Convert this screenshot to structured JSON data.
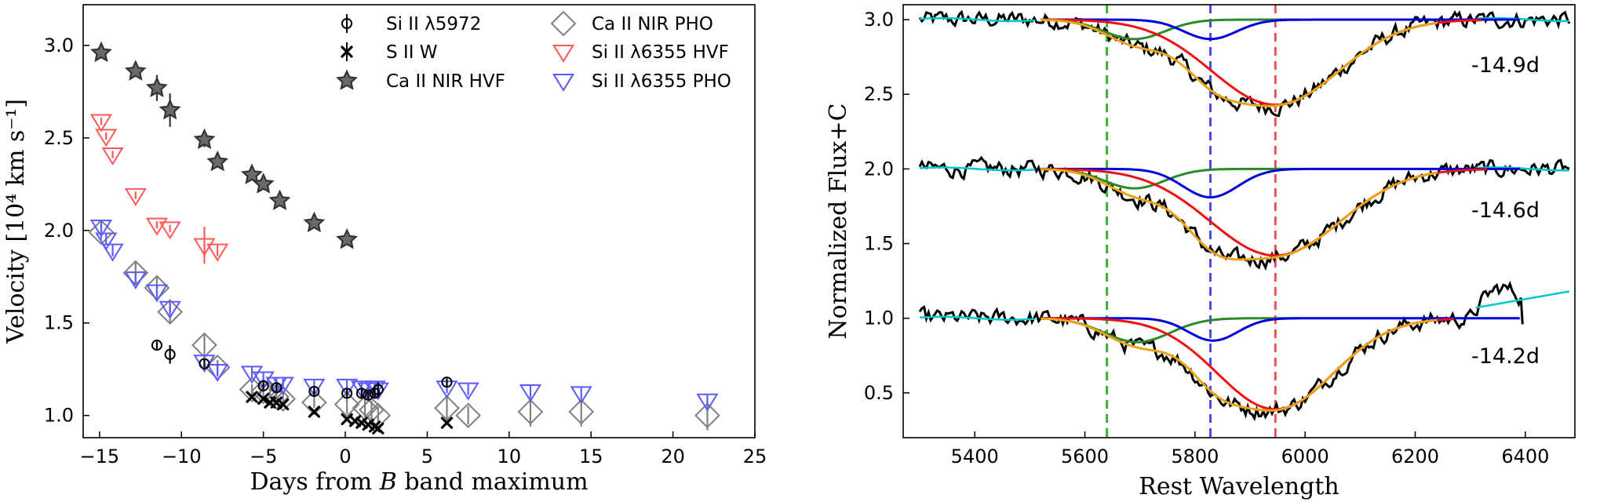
{
  "chart_data": [
    {
      "type": "scatter",
      "xlabel_pre": "Days from ",
      "xlabel_em": "B",
      "xlabel_post": " band maximum",
      "ylabel": "Velocity [10⁴ km s⁻¹]",
      "xlim": [
        -16,
        25
      ],
      "ylim": [
        0.88,
        3.22
      ],
      "xticks": [
        -15,
        -10,
        -5,
        0,
        5,
        10,
        15,
        20,
        25
      ],
      "yticks": [
        1.0,
        1.5,
        2.0,
        2.5,
        3.0
      ],
      "xtick_labels": [
        "−15",
        "−10",
        "−5",
        "0",
        "5",
        "10",
        "15",
        "20",
        "25"
      ],
      "ytick_labels": [
        "1.0",
        "1.5",
        "2.0",
        "2.5",
        "3.0"
      ],
      "legend": [
        {
          "label": "Si II λ5972",
          "marker": "circle",
          "color": "#000000"
        },
        {
          "label": "S II W",
          "marker": "x",
          "color": "#000000"
        },
        {
          "label": "Ca II NIR HVF",
          "marker": "star",
          "color": "#333333"
        },
        {
          "label": "Ca II NIR PHO",
          "marker": "diamond",
          "color": "#808080"
        },
        {
          "label": "Si II λ6355 HVF",
          "marker": "tri",
          "color": "#ff5a5a"
        },
        {
          "label": "Si II λ6355 PHO",
          "marker": "tri",
          "color": "#5a5aff"
        }
      ],
      "series": [
        {
          "name": "Ca II NIR HVF",
          "marker": "star",
          "color": "#333333",
          "x": [
            -14.9,
            -12.8,
            -11.5,
            -10.7,
            -8.6,
            -7.8,
            -5.7,
            -5.0,
            -4.0,
            -1.9,
            0.1
          ],
          "y": [
            2.96,
            2.86,
            2.77,
            2.65,
            2.49,
            2.37,
            2.3,
            2.25,
            2.16,
            2.04,
            1.95
          ],
          "err": [
            0.03,
            0.03,
            0.07,
            0.09,
            0.04,
            0.03,
            0.02,
            0.02,
            0.02,
            0.02,
            0.02
          ]
        },
        {
          "name": "Si II λ6355 HVF",
          "marker": "tri",
          "color": "#ff5a5a",
          "x": [
            -14.9,
            -14.6,
            -14.2,
            -12.8,
            -11.5,
            -10.7,
            -8.6,
            -7.8
          ],
          "y": [
            2.59,
            2.51,
            2.41,
            2.19,
            2.03,
            2.01,
            1.92,
            1.89
          ],
          "err": [
            0.02,
            0.02,
            0.02,
            0.02,
            0.02,
            0.02,
            0.1,
            0.03
          ]
        },
        {
          "name": "Ca II NIR PHO",
          "marker": "diamond",
          "color": "#808080",
          "x": [
            -14.9,
            -12.8,
            -11.5,
            -10.7,
            -8.6,
            -7.8,
            -5.7,
            -5.0,
            -4.6,
            -4.2,
            -3.8,
            -1.9,
            0.1,
            1.2,
            1.6,
            2.0,
            6.2,
            7.5,
            11.3,
            14.4,
            22.1
          ],
          "y": [
            1.99,
            1.77,
            1.69,
            1.56,
            1.38,
            1.26,
            1.14,
            1.13,
            1.12,
            1.1,
            1.09,
            1.07,
            1.06,
            1.04,
            1.03,
            1.0,
            1.04,
            1.0,
            1.02,
            1.02,
            1.0
          ],
          "err": [
            0.04,
            0.06,
            0.06,
            0.06,
            0.06,
            0.04,
            0.03,
            0.03,
            0.03,
            0.03,
            0.03,
            0.03,
            0.05,
            0.05,
            0.05,
            0.05,
            0.07,
            0.05,
            0.08,
            0.08,
            0.08
          ]
        },
        {
          "name": "Si II λ6355 PHO",
          "marker": "tri",
          "color": "#5a5aff",
          "x": [
            -14.9,
            -14.6,
            -14.2,
            -12.8,
            -11.5,
            -10.7,
            -8.6,
            -7.8,
            -5.7,
            -5.0,
            -4.2,
            -3.8,
            -1.9,
            0.1,
            1.0,
            1.4,
            1.8,
            2.0,
            6.2,
            7.5,
            11.3,
            14.4,
            22.1
          ],
          "y": [
            2.02,
            1.95,
            1.89,
            1.74,
            1.67,
            1.58,
            1.29,
            1.24,
            1.23,
            1.2,
            1.17,
            1.17,
            1.16,
            1.16,
            1.15,
            1.14,
            1.15,
            1.14,
            1.15,
            1.14,
            1.13,
            1.12,
            1.08
          ],
          "err": [
            0.03,
            0.03,
            0.03,
            0.03,
            0.03,
            0.03,
            0.03,
            0.03,
            0.03,
            0.03,
            0.03,
            0.03,
            0.03,
            0.03,
            0.03,
            0.03,
            0.03,
            0.03,
            0.03,
            0.03,
            0.03,
            0.03,
            0.03
          ]
        },
        {
          "name": "Si II λ5972",
          "marker": "circle",
          "color": "#000000",
          "x": [
            -11.5,
            -10.7,
            -8.6,
            -5.0,
            -4.2,
            -1.9,
            0.1,
            1.0,
            1.4,
            1.8,
            2.0,
            6.2
          ],
          "y": [
            1.38,
            1.33,
            1.28,
            1.16,
            1.15,
            1.13,
            1.12,
            1.12,
            1.11,
            1.12,
            1.14,
            1.18
          ],
          "err": [
            0.02,
            0.05,
            0.02,
            0.02,
            0.02,
            0.02,
            0.02,
            0.02,
            0.02,
            0.02,
            0.04,
            0.02
          ]
        },
        {
          "name": "S II W",
          "marker": "x",
          "color": "#000000",
          "x": [
            -5.7,
            -5.0,
            -4.6,
            -4.2,
            -3.8,
            -1.9,
            0.1,
            0.6,
            1.0,
            1.4,
            1.8,
            2.0,
            6.2
          ],
          "y": [
            1.1,
            1.09,
            1.07,
            1.07,
            1.06,
            1.02,
            0.98,
            0.97,
            0.96,
            0.95,
            0.94,
            0.93,
            0.96
          ],
          "err": [
            0.01,
            0.01,
            0.01,
            0.01,
            0.01,
            0.01,
            0.01,
            0.01,
            0.01,
            0.01,
            0.01,
            0.01,
            0.01
          ]
        }
      ]
    },
    {
      "type": "line",
      "xlabel": "Rest Wavelength",
      "ylabel": "Normalized Flux+C",
      "xlim": [
        5270,
        6490
      ],
      "ylim": [
        0.2,
        3.1
      ],
      "xticks": [
        5400,
        5600,
        5800,
        6000,
        6200,
        6400
      ],
      "yticks": [
        0.5,
        1.0,
        1.5,
        2.0,
        2.5,
        3.0
      ],
      "xtick_labels": [
        "5400",
        "5600",
        "5800",
        "6000",
        "6200",
        "6400"
      ],
      "ytick_labels": [
        "0.5",
        "1.0",
        "1.5",
        "2.0",
        "2.5",
        "3.0"
      ],
      "vlines": [
        {
          "x": 5640,
          "color": "#3ab03a"
        },
        {
          "x": 5828,
          "color": "#4b4bea"
        },
        {
          "x": 5946,
          "color": "#ef5050"
        }
      ],
      "annotations": [
        "-14.9d",
        "-14.6d",
        "-14.2d"
      ],
      "colors": {
        "data": "#000000",
        "continuum": "#00c8c8",
        "total": "#e8a317",
        "hvf": "#2a8a2a",
        "pho_hvf": "#0000dd",
        "pho": "#ee1111"
      },
      "spectra": [
        {
          "label": "-14.9d",
          "offset": 2.0,
          "x_start": 5300,
          "x_end": 6480,
          "cont_end": 6480,
          "components": [
            {
              "role": "hvf",
              "center": 5690,
              "depth": 0.13,
              "sigma": 55,
              "x_start": 5520,
              "x_end": 5990
            },
            {
              "role": "pho_hvf",
              "center": 5828,
              "depth": 0.13,
              "sigma": 48,
              "x_start": 5520,
              "x_end": 6390
            },
            {
              "role": "pho",
              "center": 5946,
              "depth": 0.57,
              "sigma": 115,
              "x_start": 5520,
              "x_end": 6320
            }
          ]
        },
        {
          "label": "-14.6d",
          "offset": 1.0,
          "x_start": 5300,
          "x_end": 6480,
          "cont_end": 6480,
          "components": [
            {
              "role": "hvf",
              "center": 5690,
              "depth": 0.13,
              "sigma": 55,
              "x_start": 5520,
              "x_end": 5990
            },
            {
              "role": "pho_hvf",
              "center": 5828,
              "depth": 0.19,
              "sigma": 50,
              "x_start": 5520,
              "x_end": 6390
            },
            {
              "role": "pho",
              "center": 5946,
              "depth": 0.58,
              "sigma": 118,
              "x_start": 5520,
              "x_end": 6330
            }
          ]
        },
        {
          "label": "-14.2d",
          "offset": 0.0,
          "x_start": 5300,
          "x_end": 6395,
          "cont_end": 6480,
          "components": [
            {
              "role": "hvf",
              "center": 5695,
              "depth": 0.16,
              "sigma": 60,
              "x_start": 5520,
              "x_end": 5990
            },
            {
              "role": "pho_hvf",
              "center": 5833,
              "depth": 0.15,
              "sigma": 45,
              "x_start": 5520,
              "x_end": 6390
            },
            {
              "role": "pho",
              "center": 5946,
              "depth": 0.61,
              "sigma": 105,
              "x_start": 5520,
              "x_end": 6270
            }
          ]
        }
      ]
    }
  ]
}
